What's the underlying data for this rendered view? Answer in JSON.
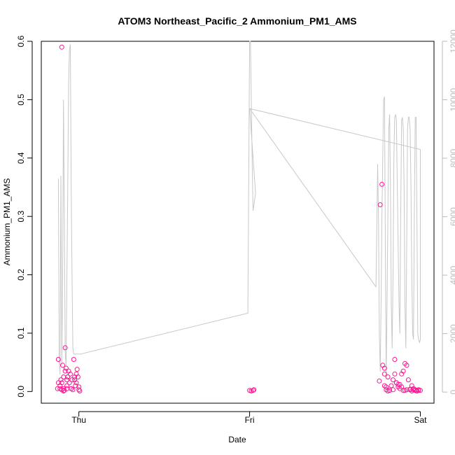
{
  "chart_data": {
    "type": "scatter",
    "title": "ATOM3 Northeast_Pacific_2 Ammonium_PM1_AMS",
    "xlabel": "Date",
    "ylabel": "Ammonium_PM1_AMS",
    "x_ticks": [
      "Thu",
      "Fri",
      "Sat"
    ],
    "x_tick_values": [
      1.0,
      2.0,
      3.0
    ],
    "xlim": [
      0.78,
      3.08
    ],
    "ylim": [
      -0.02,
      0.6
    ],
    "y_ticks": [
      0.0,
      0.1,
      0.2,
      0.3,
      0.4,
      0.5,
      0.6
    ],
    "y_tick_labels": [
      "0.0",
      "0.1",
      "0.2",
      "0.3",
      "0.4",
      "0.5",
      "0.6"
    ],
    "y2_ticks": [
      0,
      2000,
      4000,
      6000,
      8000,
      10000,
      12000
    ],
    "y2_tick_labels": [
      "0",
      "2000",
      "4000",
      "6000",
      "8000",
      "10000",
      "12000"
    ],
    "y2lim": [
      -380,
      12000
    ],
    "grid": false,
    "colors": {
      "points": "#ff1493",
      "altitude_line": "#c8c8c8",
      "right_axis": "#bbbbbb"
    },
    "series": [
      {
        "kind": "points",
        "x": [
          0.88,
          0.88,
          0.89,
          0.89,
          0.9,
          0.9,
          0.91,
          0.91,
          0.92,
          0.92,
          0.925,
          0.93,
          0.93,
          0.935,
          0.94,
          0.945,
          0.95,
          0.955,
          0.96,
          0.965,
          0.97,
          0.975,
          0.98,
          0.985,
          0.985,
          0.99,
          0.995,
          1.0,
          1.0,
          1.005,
          0.875,
          0.895,
          0.905,
          0.915,
          0.935,
          0.955,
          0.975,
          0.9,
          0.91,
          0.93,
          2.0,
          2.01,
          2.02,
          2.025,
          3.0,
          2.98,
          2.97,
          2.96,
          2.95,
          2.94,
          2.93,
          2.92,
          2.91,
          2.9,
          2.89,
          2.88,
          2.87,
          2.86,
          2.85,
          2.84,
          2.83,
          2.82,
          2.81,
          2.8,
          2.79,
          2.775,
          2.765,
          2.76,
          2.79,
          2.8,
          2.81,
          2.84,
          2.86,
          2.88,
          2.9,
          2.92,
          2.95,
          2.97,
          2.99,
          2.78,
          2.79,
          2.85,
          2.87,
          2.89,
          2.91,
          2.94,
          2.96,
          2.98,
          2.99
        ],
        "y": [
          0.055,
          0.015,
          0.01,
          0.005,
          0.003,
          0.015,
          0.025,
          0.005,
          0.075,
          0.035,
          0.04,
          0.02,
          0.01,
          0.025,
          0.035,
          0.015,
          0.03,
          0.005,
          0.02,
          0.003,
          0.055,
          0.025,
          0.01,
          0.015,
          0.03,
          0.038,
          0.025,
          0.008,
          0.003,
          0.001,
          0.005,
          0.02,
          0.045,
          0.002,
          0.025,
          0.005,
          0.02,
          0.59,
          0.001,
          0.005,
          0.002,
          0.001,
          0.002,
          0.003,
          0.002,
          0.001,
          0.003,
          0.005,
          0.01,
          0.003,
          0.02,
          0.045,
          0.048,
          0.035,
          0.03,
          0.012,
          0.008,
          0.015,
          0.055,
          0.02,
          0.01,
          0.002,
          0.001,
          0.003,
          0.01,
          0.355,
          0.32,
          0.018,
          0.04,
          0.008,
          0.025,
          0.003,
          0.015,
          0.005,
          0.002,
          0.003,
          0.001,
          0.002,
          0.003,
          0.045,
          0.03,
          0.03,
          0.012,
          0.008,
          0.002,
          0.004,
          0.003,
          0.001,
          0.002
        ]
      },
      {
        "kind": "line",
        "axis": "right",
        "x": [
          0.88,
          0.885,
          0.89,
          0.895,
          0.9,
          0.905,
          0.91,
          0.915,
          0.92,
          0.925,
          0.93,
          0.935,
          0.94,
          0.945,
          0.95,
          0.955,
          0.96,
          0.965,
          0.97,
          0.975,
          0.98,
          0.985,
          0.99,
          0.995,
          1.0,
          1.005,
          1.01,
          1.99,
          2.0,
          2.005,
          2.01,
          2.015,
          2.02,
          2.025,
          2.03,
          2.035,
          2.0,
          2.74,
          2.75,
          2.755,
          2.76,
          2.765,
          2.77,
          2.775,
          2.78,
          2.785,
          2.79,
          2.795,
          2.8,
          2.805,
          2.81,
          2.815,
          2.82,
          2.825,
          2.83,
          2.835,
          2.84,
          2.845,
          2.85,
          2.855,
          2.86,
          2.865,
          2.87,
          2.875,
          2.88,
          2.885,
          2.89,
          2.895,
          2.9,
          2.905,
          2.91,
          2.915,
          2.92,
          2.925,
          2.93,
          2.935,
          2.94,
          2.945,
          2.95,
          2.955,
          2.96,
          2.965,
          2.97,
          2.975,
          2.98,
          2.985,
          2.99,
          2.995,
          3.0,
          3.0,
          2.0
        ],
        "y": [
          7300,
          1200,
          600,
          7400,
          900,
          4000,
          10000,
          6000,
          1400,
          900,
          4000,
          7000,
          10500,
          11700,
          11900,
          7000,
          4000,
          1500,
          1300,
          1300,
          1300,
          1300,
          1300,
          1300,
          1300,
          1300,
          1300,
          2700,
          12000,
          12000,
          10000,
          8000,
          6200,
          6400,
          6600,
          6800,
          9700,
          3600,
          7800,
          6000,
          2000,
          700,
          3000,
          6000,
          8000,
          10000,
          10100,
          5000,
          500,
          3000,
          6000,
          9000,
          9500,
          7000,
          3000,
          1500,
          4000,
          8000,
          9400,
          9500,
          9300,
          7000,
          5000,
          3000,
          2000,
          6000,
          9300,
          9400,
          9000,
          7000,
          3000,
          1500,
          5000,
          9000,
          9400,
          9400,
          9000,
          7000,
          4000,
          2000,
          1800,
          6000,
          9400,
          9400,
          6000,
          2000,
          1800,
          1700,
          1800,
          8300,
          9700
        ]
      }
    ]
  }
}
